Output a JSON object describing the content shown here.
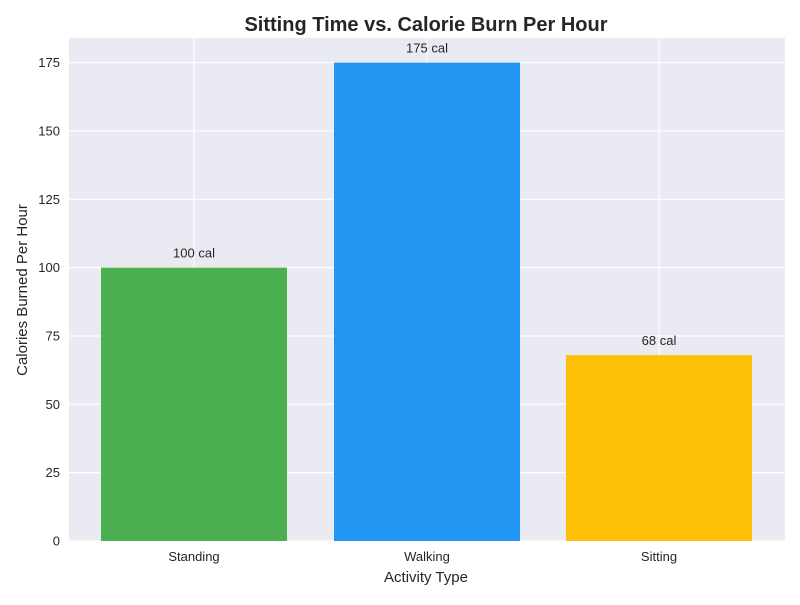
{
  "chart_data": {
    "type": "bar",
    "title": "Sitting Time vs. Calorie Burn Per Hour",
    "xlabel": "Activity Type",
    "ylabel": "Calories Burned Per Hour",
    "categories": [
      "Standing",
      "Walking",
      "Sitting"
    ],
    "values": [
      100,
      175,
      68
    ],
    "value_labels": [
      "100 cal",
      "175 cal",
      "68 cal"
    ],
    "colors": [
      "#4caf50",
      "#2196f3",
      "#ffc107"
    ],
    "ylim": [
      0,
      184
    ],
    "yticks": [
      0,
      25,
      50,
      75,
      100,
      125,
      150,
      175
    ],
    "grid": true,
    "background": "#eaeaf2",
    "legend": "none"
  }
}
